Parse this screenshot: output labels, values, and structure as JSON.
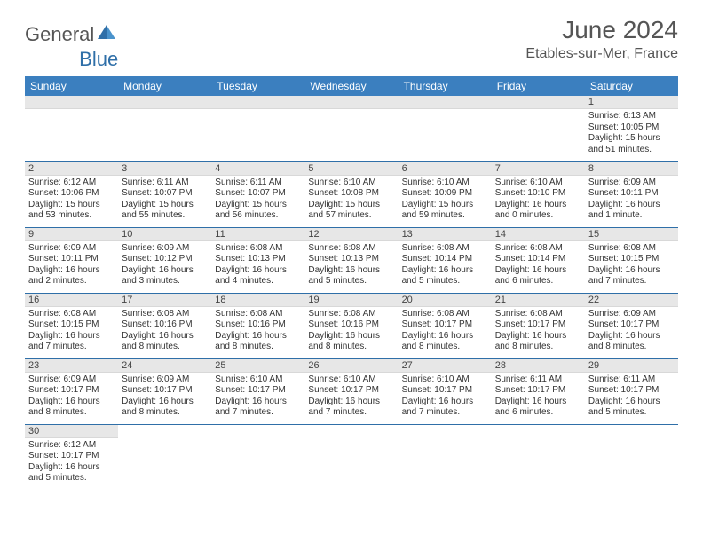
{
  "brand": {
    "part1": "General",
    "part2": "Blue"
  },
  "title": "June 2024",
  "location": "Etables-sur-Mer, France",
  "weekdays": [
    "Sunday",
    "Monday",
    "Tuesday",
    "Wednesday",
    "Thursday",
    "Friday",
    "Saturday"
  ],
  "colors": {
    "header_bg": "#3b7fbf",
    "header_text": "#ffffff",
    "daynum_bg": "#e7e7e7",
    "row_border": "#2f6fa8",
    "text": "#333333",
    "logo_blue": "#2f6fa8"
  },
  "weeks": [
    [
      null,
      null,
      null,
      null,
      null,
      null,
      {
        "n": "1",
        "sunrise": "Sunrise: 6:13 AM",
        "sunset": "Sunset: 10:05 PM",
        "daylight": "Daylight: 15 hours and 51 minutes."
      }
    ],
    [
      {
        "n": "2",
        "sunrise": "Sunrise: 6:12 AM",
        "sunset": "Sunset: 10:06 PM",
        "daylight": "Daylight: 15 hours and 53 minutes."
      },
      {
        "n": "3",
        "sunrise": "Sunrise: 6:11 AM",
        "sunset": "Sunset: 10:07 PM",
        "daylight": "Daylight: 15 hours and 55 minutes."
      },
      {
        "n": "4",
        "sunrise": "Sunrise: 6:11 AM",
        "sunset": "Sunset: 10:07 PM",
        "daylight": "Daylight: 15 hours and 56 minutes."
      },
      {
        "n": "5",
        "sunrise": "Sunrise: 6:10 AM",
        "sunset": "Sunset: 10:08 PM",
        "daylight": "Daylight: 15 hours and 57 minutes."
      },
      {
        "n": "6",
        "sunrise": "Sunrise: 6:10 AM",
        "sunset": "Sunset: 10:09 PM",
        "daylight": "Daylight: 15 hours and 59 minutes."
      },
      {
        "n": "7",
        "sunrise": "Sunrise: 6:10 AM",
        "sunset": "Sunset: 10:10 PM",
        "daylight": "Daylight: 16 hours and 0 minutes."
      },
      {
        "n": "8",
        "sunrise": "Sunrise: 6:09 AM",
        "sunset": "Sunset: 10:11 PM",
        "daylight": "Daylight: 16 hours and 1 minute."
      }
    ],
    [
      {
        "n": "9",
        "sunrise": "Sunrise: 6:09 AM",
        "sunset": "Sunset: 10:11 PM",
        "daylight": "Daylight: 16 hours and 2 minutes."
      },
      {
        "n": "10",
        "sunrise": "Sunrise: 6:09 AM",
        "sunset": "Sunset: 10:12 PM",
        "daylight": "Daylight: 16 hours and 3 minutes."
      },
      {
        "n": "11",
        "sunrise": "Sunrise: 6:08 AM",
        "sunset": "Sunset: 10:13 PM",
        "daylight": "Daylight: 16 hours and 4 minutes."
      },
      {
        "n": "12",
        "sunrise": "Sunrise: 6:08 AM",
        "sunset": "Sunset: 10:13 PM",
        "daylight": "Daylight: 16 hours and 5 minutes."
      },
      {
        "n": "13",
        "sunrise": "Sunrise: 6:08 AM",
        "sunset": "Sunset: 10:14 PM",
        "daylight": "Daylight: 16 hours and 5 minutes."
      },
      {
        "n": "14",
        "sunrise": "Sunrise: 6:08 AM",
        "sunset": "Sunset: 10:14 PM",
        "daylight": "Daylight: 16 hours and 6 minutes."
      },
      {
        "n": "15",
        "sunrise": "Sunrise: 6:08 AM",
        "sunset": "Sunset: 10:15 PM",
        "daylight": "Daylight: 16 hours and 7 minutes."
      }
    ],
    [
      {
        "n": "16",
        "sunrise": "Sunrise: 6:08 AM",
        "sunset": "Sunset: 10:15 PM",
        "daylight": "Daylight: 16 hours and 7 minutes."
      },
      {
        "n": "17",
        "sunrise": "Sunrise: 6:08 AM",
        "sunset": "Sunset: 10:16 PM",
        "daylight": "Daylight: 16 hours and 8 minutes."
      },
      {
        "n": "18",
        "sunrise": "Sunrise: 6:08 AM",
        "sunset": "Sunset: 10:16 PM",
        "daylight": "Daylight: 16 hours and 8 minutes."
      },
      {
        "n": "19",
        "sunrise": "Sunrise: 6:08 AM",
        "sunset": "Sunset: 10:16 PM",
        "daylight": "Daylight: 16 hours and 8 minutes."
      },
      {
        "n": "20",
        "sunrise": "Sunrise: 6:08 AM",
        "sunset": "Sunset: 10:17 PM",
        "daylight": "Daylight: 16 hours and 8 minutes."
      },
      {
        "n": "21",
        "sunrise": "Sunrise: 6:08 AM",
        "sunset": "Sunset: 10:17 PM",
        "daylight": "Daylight: 16 hours and 8 minutes."
      },
      {
        "n": "22",
        "sunrise": "Sunrise: 6:09 AM",
        "sunset": "Sunset: 10:17 PM",
        "daylight": "Daylight: 16 hours and 8 minutes."
      }
    ],
    [
      {
        "n": "23",
        "sunrise": "Sunrise: 6:09 AM",
        "sunset": "Sunset: 10:17 PM",
        "daylight": "Daylight: 16 hours and 8 minutes."
      },
      {
        "n": "24",
        "sunrise": "Sunrise: 6:09 AM",
        "sunset": "Sunset: 10:17 PM",
        "daylight": "Daylight: 16 hours and 8 minutes."
      },
      {
        "n": "25",
        "sunrise": "Sunrise: 6:10 AM",
        "sunset": "Sunset: 10:17 PM",
        "daylight": "Daylight: 16 hours and 7 minutes."
      },
      {
        "n": "26",
        "sunrise": "Sunrise: 6:10 AM",
        "sunset": "Sunset: 10:17 PM",
        "daylight": "Daylight: 16 hours and 7 minutes."
      },
      {
        "n": "27",
        "sunrise": "Sunrise: 6:10 AM",
        "sunset": "Sunset: 10:17 PM",
        "daylight": "Daylight: 16 hours and 7 minutes."
      },
      {
        "n": "28",
        "sunrise": "Sunrise: 6:11 AM",
        "sunset": "Sunset: 10:17 PM",
        "daylight": "Daylight: 16 hours and 6 minutes."
      },
      {
        "n": "29",
        "sunrise": "Sunrise: 6:11 AM",
        "sunset": "Sunset: 10:17 PM",
        "daylight": "Daylight: 16 hours and 5 minutes."
      }
    ],
    [
      {
        "n": "30",
        "sunrise": "Sunrise: 6:12 AM",
        "sunset": "Sunset: 10:17 PM",
        "daylight": "Daylight: 16 hours and 5 minutes."
      },
      null,
      null,
      null,
      null,
      null,
      null
    ]
  ]
}
